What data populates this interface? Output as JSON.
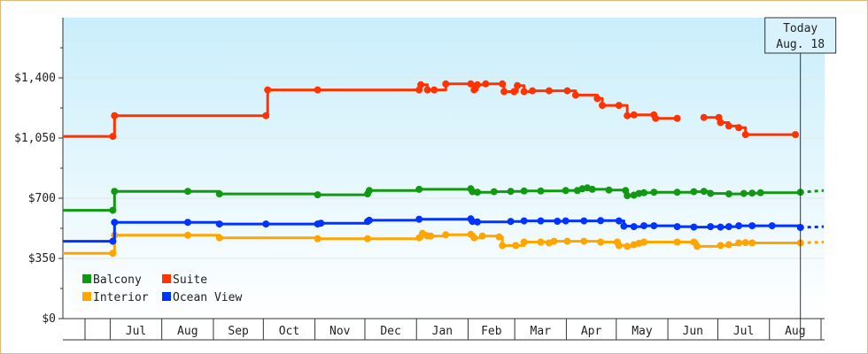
{
  "chart_data": {
    "type": "line",
    "title": "",
    "xlabel": "",
    "ylabel": "",
    "ylim": [
      0,
      1750
    ],
    "y_ticks": [
      {
        "value": 0,
        "label": "$0"
      },
      {
        "value": 350,
        "label": "$350"
      },
      {
        "value": 700,
        "label": "$700"
      },
      {
        "value": 1050,
        "label": "$1,050"
      },
      {
        "value": 1400,
        "label": "$1,400"
      }
    ],
    "x_months": [
      "Jul",
      "Aug",
      "Sep",
      "Oct",
      "Nov",
      "Dec",
      "Jan",
      "Feb",
      "Mar",
      "Apr",
      "May",
      "Jun",
      "Jul",
      "Aug"
    ],
    "x_range": [
      "2017-06-01",
      "2018-09-01"
    ],
    "today": {
      "line1": "Today",
      "line2": "Aug. 18",
      "date": "2018-08-18"
    },
    "legend": {
      "position": "bottom-left"
    },
    "colors": {
      "Balcony": "#119911",
      "Suite": "#ff3300",
      "Interior": "#ffa500",
      "Ocean View": "#0033ff"
    },
    "series": [
      {
        "name": "Balcony",
        "color": "#119911",
        "points": [
          [
            "2017-06-01",
            630
          ],
          [
            "2017-07-01",
            630
          ],
          [
            "2017-07-02",
            740
          ],
          [
            "2017-08-15",
            740
          ],
          [
            "2017-09-03",
            725
          ],
          [
            "2017-11-01",
            720
          ],
          [
            "2017-12-01",
            725
          ],
          [
            "2017-12-02",
            745
          ],
          [
            "2018-01-01",
            752
          ],
          [
            "2018-02-01",
            755
          ],
          [
            "2018-02-02",
            738
          ],
          [
            "2018-02-05",
            735
          ],
          [
            "2018-02-15",
            738
          ],
          [
            "2018-02-25",
            740
          ],
          [
            "2018-03-05",
            742
          ],
          [
            "2018-03-15",
            742
          ],
          [
            "2018-03-30",
            745
          ],
          [
            "2018-04-06",
            745
          ],
          [
            "2018-04-09",
            755
          ],
          [
            "2018-04-12",
            760
          ],
          [
            "2018-04-15",
            752
          ],
          [
            "2018-04-25",
            748
          ],
          [
            "2018-05-05",
            745
          ],
          [
            "2018-05-06",
            715
          ],
          [
            "2018-05-10",
            718
          ],
          [
            "2018-05-13",
            728
          ],
          [
            "2018-05-16",
            732
          ],
          [
            "2018-05-22",
            735
          ],
          [
            "2018-06-05",
            735
          ],
          [
            "2018-06-15",
            738
          ],
          [
            "2018-06-21",
            740
          ],
          [
            "2018-06-25",
            728
          ],
          [
            "2018-07-06",
            725
          ],
          [
            "2018-07-15",
            728
          ],
          [
            "2018-07-20",
            730
          ],
          [
            "2018-07-25",
            732
          ],
          [
            "2018-08-18",
            735
          ]
        ],
        "forecast": [
          [
            "2018-08-18",
            735
          ],
          [
            "2018-09-01",
            745
          ]
        ]
      },
      {
        "name": "Suite",
        "color": "#ff3300",
        "points": [
          [
            "2017-06-01",
            1060
          ],
          [
            "2017-07-01",
            1060
          ],
          [
            "2017-07-02",
            1180
          ],
          [
            "2017-10-01",
            1180
          ],
          [
            "2017-10-02",
            1330
          ],
          [
            "2017-11-01",
            1330
          ],
          [
            "2018-01-01",
            1330
          ],
          [
            "2018-01-02",
            1360
          ],
          [
            "2018-01-06",
            1330
          ],
          [
            "2018-01-10",
            1330
          ],
          [
            "2018-01-17",
            1365
          ],
          [
            "2018-02-01",
            1365
          ],
          [
            "2018-02-03",
            1330
          ],
          [
            "2018-02-05",
            1360
          ],
          [
            "2018-02-10",
            1365
          ],
          [
            "2018-02-20",
            1365
          ],
          [
            "2018-02-21",
            1320
          ],
          [
            "2018-02-27",
            1320
          ],
          [
            "2018-03-01",
            1355
          ],
          [
            "2018-03-05",
            1320
          ],
          [
            "2018-03-10",
            1325
          ],
          [
            "2018-03-20",
            1325
          ],
          [
            "2018-03-31",
            1325
          ],
          [
            "2018-04-05",
            1300
          ],
          [
            "2018-04-18",
            1280
          ],
          [
            "2018-04-21",
            1240
          ],
          [
            "2018-05-01",
            1240
          ],
          [
            "2018-05-06",
            1180
          ],
          [
            "2018-05-10",
            1185
          ],
          [
            "2018-05-22",
            1185
          ],
          [
            "2018-05-23",
            1165
          ],
          [
            "2018-06-05",
            1165
          ],
          [
            "2018-06-21",
            1170
          ],
          [
            "2018-06-30",
            1170
          ],
          [
            "2018-07-01",
            1140
          ],
          [
            "2018-07-06",
            1120
          ],
          [
            "2018-07-12",
            1110
          ],
          [
            "2018-07-16",
            1070
          ],
          [
            "2018-08-15",
            1070
          ]
        ],
        "gaps": [
          "2018-06-05"
        ]
      },
      {
        "name": "Interior",
        "color": "#ffa500",
        "points": [
          [
            "2017-06-01",
            380
          ],
          [
            "2017-07-01",
            380
          ],
          [
            "2017-07-02",
            485
          ],
          [
            "2017-08-15",
            485
          ],
          [
            "2017-09-03",
            470
          ],
          [
            "2017-11-01",
            465
          ],
          [
            "2017-12-01",
            465
          ],
          [
            "2018-01-01",
            470
          ],
          [
            "2018-01-03",
            495
          ],
          [
            "2018-01-06",
            480
          ],
          [
            "2018-01-08",
            480
          ],
          [
            "2018-01-17",
            488
          ],
          [
            "2018-02-01",
            490
          ],
          [
            "2018-02-03",
            470
          ],
          [
            "2018-02-08",
            480
          ],
          [
            "2018-02-18",
            475
          ],
          [
            "2018-02-20",
            425
          ],
          [
            "2018-02-28",
            425
          ],
          [
            "2018-03-05",
            445
          ],
          [
            "2018-03-15",
            445
          ],
          [
            "2018-03-20",
            440
          ],
          [
            "2018-03-23",
            450
          ],
          [
            "2018-03-31",
            450
          ],
          [
            "2018-04-10",
            450
          ],
          [
            "2018-04-20",
            445
          ],
          [
            "2018-04-30",
            445
          ],
          [
            "2018-05-01",
            425
          ],
          [
            "2018-05-06",
            420
          ],
          [
            "2018-05-10",
            430
          ],
          [
            "2018-05-13",
            438
          ],
          [
            "2018-05-16",
            445
          ],
          [
            "2018-06-05",
            445
          ],
          [
            "2018-06-15",
            445
          ],
          [
            "2018-06-17",
            420
          ],
          [
            "2018-07-01",
            425
          ],
          [
            "2018-07-06",
            430
          ],
          [
            "2018-07-12",
            440
          ],
          [
            "2018-07-16",
            442
          ],
          [
            "2018-07-20",
            440
          ],
          [
            "2018-08-18",
            440
          ]
        ],
        "forecast": [
          [
            "2018-08-18",
            440
          ],
          [
            "2018-09-01",
            445
          ]
        ]
      },
      {
        "name": "Ocean View",
        "color": "#0033ff",
        "points": [
          [
            "2017-06-01",
            450
          ],
          [
            "2017-07-01",
            450
          ],
          [
            "2017-07-02",
            560
          ],
          [
            "2017-08-15",
            560
          ],
          [
            "2017-09-03",
            550
          ],
          [
            "2017-10-01",
            550
          ],
          [
            "2017-11-01",
            550
          ],
          [
            "2017-11-03",
            555
          ],
          [
            "2017-12-01",
            565
          ],
          [
            "2017-12-02",
            572
          ],
          [
            "2018-01-01",
            578
          ],
          [
            "2018-02-01",
            580
          ],
          [
            "2018-02-02",
            565
          ],
          [
            "2018-02-05",
            562
          ],
          [
            "2018-02-25",
            565
          ],
          [
            "2018-03-05",
            568
          ],
          [
            "2018-03-15",
            568
          ],
          [
            "2018-03-25",
            566
          ],
          [
            "2018-03-30",
            568
          ],
          [
            "2018-04-10",
            568
          ],
          [
            "2018-04-20",
            570
          ],
          [
            "2018-05-01",
            568
          ],
          [
            "2018-05-04",
            538
          ],
          [
            "2018-05-10",
            535
          ],
          [
            "2018-05-16",
            540
          ],
          [
            "2018-05-22",
            540
          ],
          [
            "2018-06-05",
            535
          ],
          [
            "2018-06-15",
            532
          ],
          [
            "2018-06-25",
            535
          ],
          [
            "2018-07-01",
            532
          ],
          [
            "2018-07-06",
            535
          ],
          [
            "2018-07-12",
            540
          ],
          [
            "2018-07-20",
            540
          ],
          [
            "2018-08-01",
            540
          ],
          [
            "2018-08-18",
            530
          ]
        ],
        "forecast": [
          [
            "2018-08-18",
            530
          ],
          [
            "2018-09-01",
            535
          ]
        ]
      }
    ]
  }
}
